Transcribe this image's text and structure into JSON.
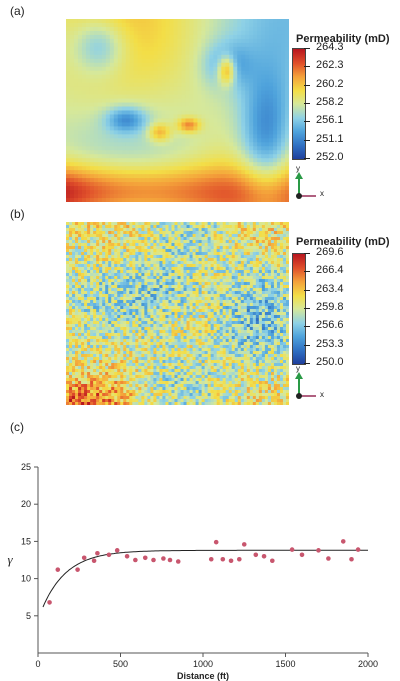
{
  "panels": {
    "a": {
      "label": "(a)",
      "legend_title": "Permeability (mD)",
      "ticks": [
        "264.3",
        "262.3",
        "260.2",
        "258.2",
        "256.1",
        "251.1",
        "252.0"
      ],
      "axis_y": "y",
      "axis_x": "x"
    },
    "b": {
      "label": "(b)",
      "legend_title": "Permeability (mD)",
      "ticks": [
        "269.6",
        "266.4",
        "263.4",
        "259.8",
        "256.6",
        "253.3",
        "250.0"
      ],
      "axis_y": "y",
      "axis_x": "x"
    },
    "c": {
      "label": "(c)"
    }
  },
  "colors": {
    "colormap": [
      "#1f3f9c",
      "#2f6fc2",
      "#4fa3dc",
      "#8ed1e6",
      "#d6e89a",
      "#f3de47",
      "#f4a03a",
      "#e0502b",
      "#b8161f"
    ],
    "points": "#c8566e",
    "curve": "#222222"
  },
  "chart_data": {
    "type": "scatter",
    "xlabel": "Distance (ft)",
    "ylabel": "γ",
    "xlim": [
      0,
      2000
    ],
    "ylim": [
      0,
      25
    ],
    "x_ticks": [
      0,
      500,
      1000,
      1500,
      2000
    ],
    "y_ticks": [
      5,
      10,
      15,
      20,
      25
    ],
    "grid": false,
    "series": [
      {
        "type": "scatter",
        "points": [
          [
            70,
            6.8
          ],
          [
            120,
            11.2
          ],
          [
            240,
            11.2
          ],
          [
            280,
            12.8
          ],
          [
            340,
            12.4
          ],
          [
            360,
            13.4
          ],
          [
            430,
            13.2
          ],
          [
            480,
            13.8
          ],
          [
            540,
            13.0
          ],
          [
            590,
            12.5
          ],
          [
            650,
            12.8
          ],
          [
            700,
            12.5
          ],
          [
            760,
            12.7
          ],
          [
            800,
            12.5
          ],
          [
            850,
            12.3
          ],
          [
            1050,
            12.6
          ],
          [
            1080,
            14.9
          ],
          [
            1120,
            12.6
          ],
          [
            1170,
            12.4
          ],
          [
            1220,
            12.6
          ],
          [
            1250,
            14.6
          ],
          [
            1320,
            13.2
          ],
          [
            1370,
            13.0
          ],
          [
            1420,
            12.4
          ],
          [
            1540,
            13.9
          ],
          [
            1600,
            13.2
          ],
          [
            1700,
            13.8
          ],
          [
            1760,
            12.7
          ],
          [
            1850,
            15.0
          ],
          [
            1900,
            12.6
          ],
          [
            1940,
            13.9
          ]
        ]
      },
      {
        "type": "line",
        "model": "exponential",
        "nugget": 4.5,
        "sill": 13.8,
        "range": 450,
        "x_start": 30
      }
    ]
  }
}
